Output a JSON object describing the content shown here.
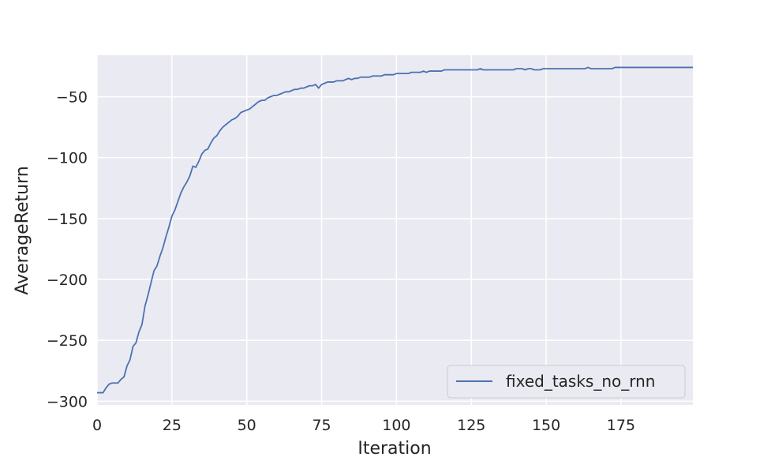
{
  "chart_data": {
    "type": "line",
    "title": "",
    "xlabel": "Iteration",
    "ylabel": "AverageReturn",
    "xlim": [
      0,
      199
    ],
    "ylim": [
      -303,
      -16
    ],
    "x_ticks": [
      0,
      25,
      50,
      75,
      100,
      125,
      150,
      175
    ],
    "x_tick_labels": [
      "0",
      "25",
      "50",
      "75",
      "100",
      "125",
      "150",
      "175"
    ],
    "y_ticks": [
      -300,
      -250,
      -200,
      -150,
      -100,
      -50
    ],
    "y_tick_labels": [
      "−300",
      "−250",
      "−200",
      "−150",
      "−100",
      "−50"
    ],
    "grid": true,
    "legend_position": "lower-right",
    "background_color": "#eaeaf2",
    "grid_color": "#ffffff",
    "series": [
      {
        "name": "fixed_tasks_no_rnn",
        "color": "#4c72b0",
        "points": [
          [
            0,
            -293
          ],
          [
            1,
            -293
          ],
          [
            2,
            -293
          ],
          [
            3,
            -289
          ],
          [
            4,
            -286
          ],
          [
            5,
            -285
          ],
          [
            6,
            -285
          ],
          [
            7,
            -285
          ],
          [
            8,
            -282
          ],
          [
            9,
            -280
          ],
          [
            10,
            -271
          ],
          [
            11,
            -266
          ],
          [
            12,
            -255
          ],
          [
            13,
            -252
          ],
          [
            14,
            -243
          ],
          [
            15,
            -237
          ],
          [
            16,
            -222
          ],
          [
            17,
            -213
          ],
          [
            18,
            -203
          ],
          [
            19,
            -193
          ],
          [
            20,
            -189
          ],
          [
            21,
            -181
          ],
          [
            22,
            -174
          ],
          [
            23,
            -165
          ],
          [
            24,
            -157
          ],
          [
            25,
            -148
          ],
          [
            26,
            -143
          ],
          [
            27,
            -136
          ],
          [
            28,
            -129
          ],
          [
            29,
            -124
          ],
          [
            30,
            -120
          ],
          [
            31,
            -115
          ],
          [
            32,
            -107
          ],
          [
            33,
            -108
          ],
          [
            34,
            -103
          ],
          [
            35,
            -97
          ],
          [
            36,
            -94
          ],
          [
            37,
            -93
          ],
          [
            38,
            -88
          ],
          [
            39,
            -84
          ],
          [
            40,
            -82
          ],
          [
            41,
            -78
          ],
          [
            42,
            -75
          ],
          [
            43,
            -73
          ],
          [
            44,
            -71
          ],
          [
            45,
            -69
          ],
          [
            46,
            -68
          ],
          [
            47,
            -66
          ],
          [
            48,
            -63
          ],
          [
            49,
            -62
          ],
          [
            50,
            -61
          ],
          [
            51,
            -60
          ],
          [
            52,
            -58
          ],
          [
            53,
            -56
          ],
          [
            54,
            -54
          ],
          [
            55,
            -53
          ],
          [
            56,
            -53
          ],
          [
            57,
            -51
          ],
          [
            58,
            -50
          ],
          [
            59,
            -49
          ],
          [
            60,
            -49
          ],
          [
            61,
            -48
          ],
          [
            62,
            -47
          ],
          [
            63,
            -46
          ],
          [
            64,
            -46
          ],
          [
            65,
            -45
          ],
          [
            66,
            -44
          ],
          [
            67,
            -44
          ],
          [
            68,
            -43
          ],
          [
            69,
            -43
          ],
          [
            70,
            -42
          ],
          [
            71,
            -41
          ],
          [
            72,
            -41
          ],
          [
            73,
            -40
          ],
          [
            74,
            -43
          ],
          [
            75,
            -40
          ],
          [
            76,
            -39
          ],
          [
            77,
            -38
          ],
          [
            78,
            -38
          ],
          [
            79,
            -38
          ],
          [
            80,
            -37
          ],
          [
            81,
            -37
          ],
          [
            82,
            -37
          ],
          [
            83,
            -36
          ],
          [
            84,
            -35
          ],
          [
            85,
            -36
          ],
          [
            86,
            -35
          ],
          [
            87,
            -35
          ],
          [
            88,
            -34
          ],
          [
            89,
            -34
          ],
          [
            90,
            -34
          ],
          [
            91,
            -34
          ],
          [
            92,
            -33
          ],
          [
            93,
            -33
          ],
          [
            94,
            -33
          ],
          [
            95,
            -33
          ],
          [
            96,
            -32
          ],
          [
            97,
            -32
          ],
          [
            98,
            -32
          ],
          [
            99,
            -32
          ],
          [
            100,
            -31
          ],
          [
            101,
            -31
          ],
          [
            102,
            -31
          ],
          [
            103,
            -31
          ],
          [
            104,
            -31
          ],
          [
            105,
            -30
          ],
          [
            106,
            -30
          ],
          [
            107,
            -30
          ],
          [
            108,
            -30
          ],
          [
            109,
            -29
          ],
          [
            110,
            -30
          ],
          [
            111,
            -29
          ],
          [
            112,
            -29
          ],
          [
            113,
            -29
          ],
          [
            114,
            -29
          ],
          [
            115,
            -29
          ],
          [
            116,
            -28
          ],
          [
            117,
            -28
          ],
          [
            118,
            -28
          ],
          [
            119,
            -28
          ],
          [
            120,
            -28
          ],
          [
            121,
            -28
          ],
          [
            122,
            -28
          ],
          [
            123,
            -28
          ],
          [
            124,
            -28
          ],
          [
            125,
            -28
          ],
          [
            126,
            -28
          ],
          [
            127,
            -28
          ],
          [
            128,
            -27
          ],
          [
            129,
            -28
          ],
          [
            130,
            -28
          ],
          [
            131,
            -28
          ],
          [
            132,
            -28
          ],
          [
            133,
            -28
          ],
          [
            134,
            -28
          ],
          [
            135,
            -28
          ],
          [
            136,
            -28
          ],
          [
            137,
            -28
          ],
          [
            138,
            -28
          ],
          [
            139,
            -28
          ],
          [
            140,
            -27
          ],
          [
            141,
            -27
          ],
          [
            142,
            -27
          ],
          [
            143,
            -28
          ],
          [
            144,
            -27
          ],
          [
            145,
            -27
          ],
          [
            146,
            -28
          ],
          [
            147,
            -28
          ],
          [
            148,
            -28
          ],
          [
            149,
            -27
          ],
          [
            150,
            -27
          ],
          [
            151,
            -27
          ],
          [
            152,
            -27
          ],
          [
            153,
            -27
          ],
          [
            154,
            -27
          ],
          [
            155,
            -27
          ],
          [
            156,
            -27
          ],
          [
            157,
            -27
          ],
          [
            158,
            -27
          ],
          [
            159,
            -27
          ],
          [
            160,
            -27
          ],
          [
            161,
            -27
          ],
          [
            162,
            -27
          ],
          [
            163,
            -27
          ],
          [
            164,
            -26
          ],
          [
            165,
            -27
          ],
          [
            166,
            -27
          ],
          [
            167,
            -27
          ],
          [
            168,
            -27
          ],
          [
            169,
            -27
          ],
          [
            170,
            -27
          ],
          [
            171,
            -27
          ],
          [
            172,
            -27
          ],
          [
            173,
            -26
          ],
          [
            174,
            -26
          ],
          [
            175,
            -26
          ],
          [
            176,
            -26
          ],
          [
            177,
            -26
          ],
          [
            178,
            -26
          ],
          [
            179,
            -26
          ],
          [
            180,
            -26
          ],
          [
            181,
            -26
          ],
          [
            182,
            -26
          ],
          [
            183,
            -26
          ],
          [
            184,
            -26
          ],
          [
            185,
            -26
          ],
          [
            186,
            -26
          ],
          [
            187,
            -26
          ],
          [
            188,
            -26
          ],
          [
            189,
            -26
          ],
          [
            190,
            -26
          ],
          [
            191,
            -26
          ],
          [
            192,
            -26
          ],
          [
            193,
            -26
          ],
          [
            194,
            -26
          ],
          [
            195,
            -26
          ],
          [
            196,
            -26
          ],
          [
            197,
            -26
          ],
          [
            198,
            -26
          ],
          [
            199,
            -26
          ]
        ]
      }
    ]
  }
}
